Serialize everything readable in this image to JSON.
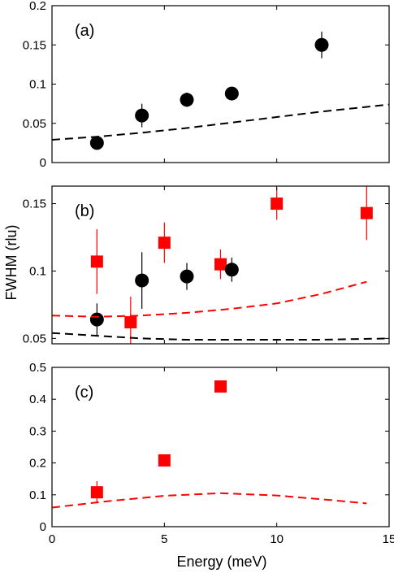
{
  "chart_data": [
    {
      "type": "scatter",
      "panel_label": "(a)",
      "xlim": [
        0,
        15
      ],
      "ylim": [
        0,
        0.2
      ],
      "xticks": [
        0,
        5,
        10,
        15
      ],
      "yticks": [
        0,
        0.05,
        0.1,
        0.15,
        0.2
      ],
      "ytick_labels": [
        "0",
        "0.05",
        "0.1",
        "0.15",
        "0.2"
      ],
      "xtick_labels_shown": false,
      "grid": false,
      "series": [
        {
          "marker": "circle",
          "color": "#000000",
          "x": [
            2,
            4,
            6,
            8,
            12
          ],
          "y": [
            0.025,
            0.06,
            0.08,
            0.088,
            0.15
          ],
          "err": [
            0.006,
            0.015,
            0.009,
            0.008,
            0.017
          ]
        },
        {
          "style": "dashed-line",
          "color": "#000000",
          "x": [
            0,
            2,
            4,
            6,
            8,
            10,
            12,
            15
          ],
          "y": [
            0.029,
            0.033,
            0.038,
            0.044,
            0.051,
            0.058,
            0.065,
            0.074
          ]
        }
      ]
    },
    {
      "type": "scatter",
      "panel_label": "(b)",
      "xlim": [
        0,
        15
      ],
      "ylim": [
        0.046,
        0.163
      ],
      "xticks": [
        0,
        5,
        10,
        15
      ],
      "yticks": [
        0.05,
        0.1,
        0.15
      ],
      "ytick_labels": [
        "0.05",
        "0.1",
        "0.15"
      ],
      "xtick_labels_shown": false,
      "grid": false,
      "series": [
        {
          "marker": "square",
          "color": "#ff0000",
          "x": [
            2,
            3.5,
            5,
            7.5,
            10,
            14
          ],
          "y": [
            0.107,
            0.062,
            0.121,
            0.105,
            0.15,
            0.143
          ],
          "err": [
            0.024,
            0.019,
            0.015,
            0.011,
            0.012,
            0.02
          ]
        },
        {
          "marker": "circle",
          "color": "#000000",
          "x": [
            2,
            4,
            6,
            8
          ],
          "y": [
            0.064,
            0.093,
            0.096,
            0.101
          ],
          "err": [
            0.012,
            0.021,
            0.01,
            0.009
          ]
        },
        {
          "style": "dashed-line",
          "color": "#ff0000",
          "x": [
            0,
            2,
            4,
            6,
            8,
            10,
            12,
            14
          ],
          "y": [
            0.067,
            0.066,
            0.067,
            0.069,
            0.072,
            0.076,
            0.083,
            0.092
          ]
        },
        {
          "style": "dashed-line",
          "color": "#000000",
          "x": [
            0,
            2,
            4,
            6,
            8,
            10,
            12,
            15
          ],
          "y": [
            0.054,
            0.052,
            0.05,
            0.049,
            0.049,
            0.049,
            0.049,
            0.05
          ]
        }
      ]
    },
    {
      "type": "scatter",
      "panel_label": "(c)",
      "xlim": [
        0,
        15
      ],
      "ylim": [
        0,
        0.5
      ],
      "xticks": [
        0,
        5,
        10,
        15
      ],
      "xtick_labels": [
        "0",
        "5",
        "10",
        "15"
      ],
      "yticks": [
        0,
        0.1,
        0.2,
        0.3,
        0.4,
        0.5
      ],
      "ytick_labels": [
        "0",
        "0.1",
        "0.2",
        "0.3",
        "0.4",
        "0.5"
      ],
      "xtick_labels_shown": true,
      "grid": false,
      "series": [
        {
          "marker": "square",
          "color": "#ff0000",
          "x": [
            2,
            5,
            7.5
          ],
          "y": [
            0.108,
            0.208,
            0.44
          ],
          "err": [
            0.035,
            0.018,
            0.008
          ]
        },
        {
          "style": "dashed-line",
          "color": "#ff0000",
          "x": [
            0,
            2.5,
            5,
            7.5,
            10,
            12.5,
            14
          ],
          "y": [
            0.06,
            0.08,
            0.097,
            0.105,
            0.098,
            0.083,
            0.073
          ]
        }
      ]
    }
  ],
  "xlabel": "Energy (meV)",
  "ylabel": "FWHM (rlu)"
}
